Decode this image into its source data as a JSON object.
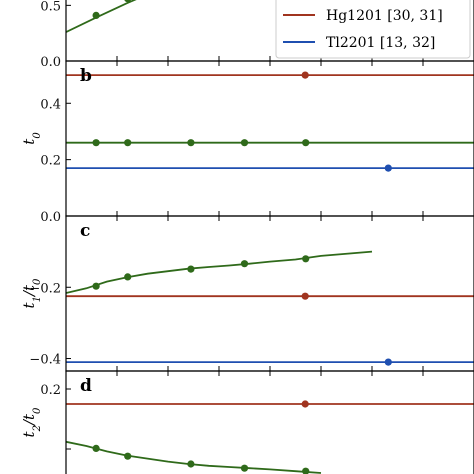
{
  "colors": {
    "Hg1201": "#a0341f",
    "Tl2201": "#1f4fb0",
    "La": "#2f6a1a",
    "axis": "#000000"
  },
  "legend": {
    "entries": [
      {
        "label": "Hg1201 [30, 31]",
        "color_key": "Hg1201"
      },
      {
        "label": "Tl2201 [13, 32]",
        "color_key": "Tl2201"
      }
    ],
    "placement": "top-right"
  },
  "chart_data": [
    {
      "type": "line",
      "panel": "a",
      "ylim": [
        0.0,
        0.62
      ],
      "yticks": [
        0.0,
        0.5
      ],
      "ytick_labels": [
        "0.0",
        "0.5"
      ],
      "series": [
        {
          "color_key": "La",
          "curve": [
            [
              0.0,
              0.26
            ],
            [
              0.0295,
              0.39
            ],
            [
              0.06,
              0.52
            ],
            [
              0.075,
              0.58
            ]
          ],
          "points": [
            [
              0.0295,
              0.41
            ],
            [
              0.0605,
              0.56
            ]
          ]
        }
      ]
    },
    {
      "type": "line",
      "panel": "b",
      "label": "b",
      "ylabel": "t_0",
      "ylim": [
        0.0,
        0.55
      ],
      "yticks": [
        0.0,
        0.2,
        0.4
      ],
      "ytick_labels": [
        "0.0",
        "0.2",
        "0.4"
      ],
      "series": [
        {
          "color_key": "Hg1201",
          "curve": [
            [
              0.0,
              0.5
            ],
            [
              0.75,
              0.5
            ]
          ],
          "points": [
            [
              0.2345,
              0.5
            ]
          ]
        },
        {
          "color_key": "La",
          "curve": [
            [
              0.0,
              0.26
            ],
            [
              0.75,
              0.26
            ]
          ],
          "points": [
            [
              0.0295,
              0.26
            ],
            [
              0.0605,
              0.26
            ],
            [
              0.1225,
              0.26
            ],
            [
              0.175,
              0.26
            ],
            [
              0.235,
              0.26
            ]
          ]
        },
        {
          "color_key": "Tl2201",
          "curve": [
            [
              0.0,
              0.17
            ],
            [
              0.75,
              0.17
            ]
          ],
          "points": [
            [
              0.316,
              0.17
            ]
          ]
        }
      ]
    },
    {
      "type": "line",
      "panel": "c",
      "label": "c",
      "ylabel": "t_1/t_0",
      "ylim": [
        -0.435,
        0.0
      ],
      "yticks": [
        -0.2,
        -0.4
      ],
      "ytick_labels": [
        "−0.2",
        "−0.4"
      ],
      "series": [
        {
          "color_key": "Hg1201",
          "curve": [
            [
              0.0,
              -0.225
            ],
            [
              0.75,
              -0.225
            ]
          ],
          "points": [
            [
              0.2345,
              -0.225
            ]
          ]
        },
        {
          "color_key": "La",
          "curve": [
            [
              0.0,
              -0.216
            ],
            [
              0.02,
              -0.203
            ],
            [
              0.04,
              -0.184
            ],
            [
              0.06,
              -0.172
            ],
            [
              0.08,
              -0.162
            ],
            [
              0.1,
              -0.155
            ],
            [
              0.12,
              -0.148
            ],
            [
              0.14,
              -0.143
            ],
            [
              0.16,
              -0.139
            ],
            [
              0.18,
              -0.134
            ],
            [
              0.2,
              -0.128
            ],
            [
              0.225,
              -0.122
            ],
            [
              0.25,
              -0.112
            ],
            [
              0.3,
              -0.1
            ]
          ],
          "points": [
            [
              0.0295,
              -0.197
            ],
            [
              0.0605,
              -0.171
            ],
            [
              0.1225,
              -0.149
            ],
            [
              0.175,
              -0.134
            ],
            [
              0.235,
              -0.12
            ]
          ]
        },
        {
          "color_key": "Tl2201",
          "curve": [
            [
              0.0,
              -0.41
            ],
            [
              0.75,
              -0.41
            ]
          ],
          "points": [
            [
              0.316,
              -0.41
            ]
          ]
        }
      ]
    },
    {
      "type": "line",
      "panel": "d",
      "label": "d",
      "ylabel": "t_2/t_0",
      "ylim": [
        0.045,
        0.23
      ],
      "yticks": [
        0.2,
        0.1
      ],
      "ytick_labels": [
        "0.2",
        ""
      ],
      "series": [
        {
          "color_key": "Hg1201",
          "curve": [
            [
              0.0,
              0.175
            ],
            [
              0.75,
              0.175
            ]
          ],
          "points": [
            [
              0.2345,
              0.175
            ]
          ]
        },
        {
          "color_key": "La",
          "curve": [
            [
              0.0,
              0.112
            ],
            [
              0.02,
              0.105
            ],
            [
              0.04,
              0.096
            ],
            [
              0.06,
              0.089
            ],
            [
              0.08,
              0.084
            ],
            [
              0.1,
              0.079
            ],
            [
              0.12,
              0.075
            ],
            [
              0.14,
              0.072
            ],
            [
              0.16,
              0.07
            ],
            [
              0.18,
              0.068
            ],
            [
              0.2,
              0.066
            ],
            [
              0.225,
              0.063
            ],
            [
              0.25,
              0.06
            ]
          ],
          "points": [
            [
              0.0295,
              0.101
            ],
            [
              0.0605,
              0.088
            ],
            [
              0.1225,
              0.075
            ],
            [
              0.175,
              0.068
            ],
            [
              0.235,
              0.063
            ]
          ]
        }
      ]
    }
  ]
}
